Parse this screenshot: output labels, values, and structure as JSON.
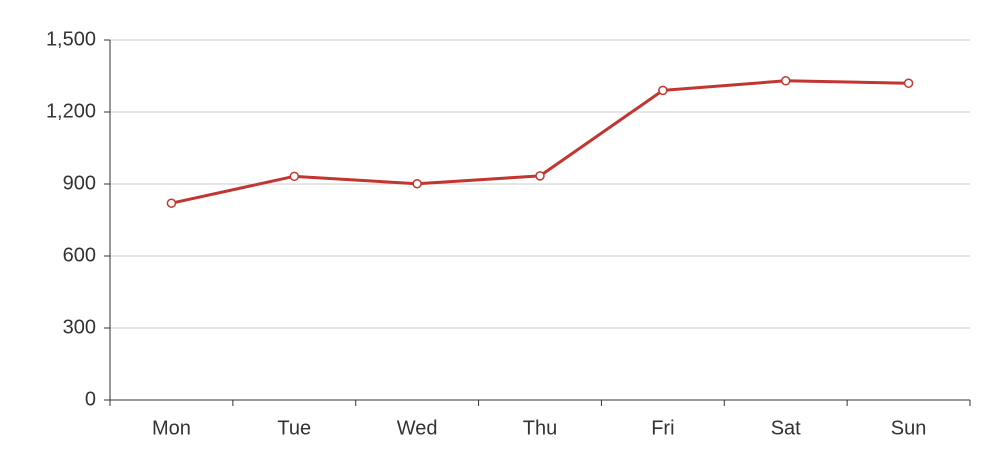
{
  "chart_data": {
    "type": "line",
    "categories": [
      "Mon",
      "Tue",
      "Wed",
      "Thu",
      "Fri",
      "Sat",
      "Sun"
    ],
    "values": [
      820,
      932,
      901,
      934,
      1290,
      1330,
      1320
    ],
    "color": "#c23531",
    "ylim": [
      0,
      1500
    ],
    "yticks": [
      0,
      300,
      600,
      900,
      {
        "value": 1200,
        "label": "1,200"
      },
      {
        "value": 1500,
        "label": "1,500"
      }
    ],
    "grid": true
  }
}
